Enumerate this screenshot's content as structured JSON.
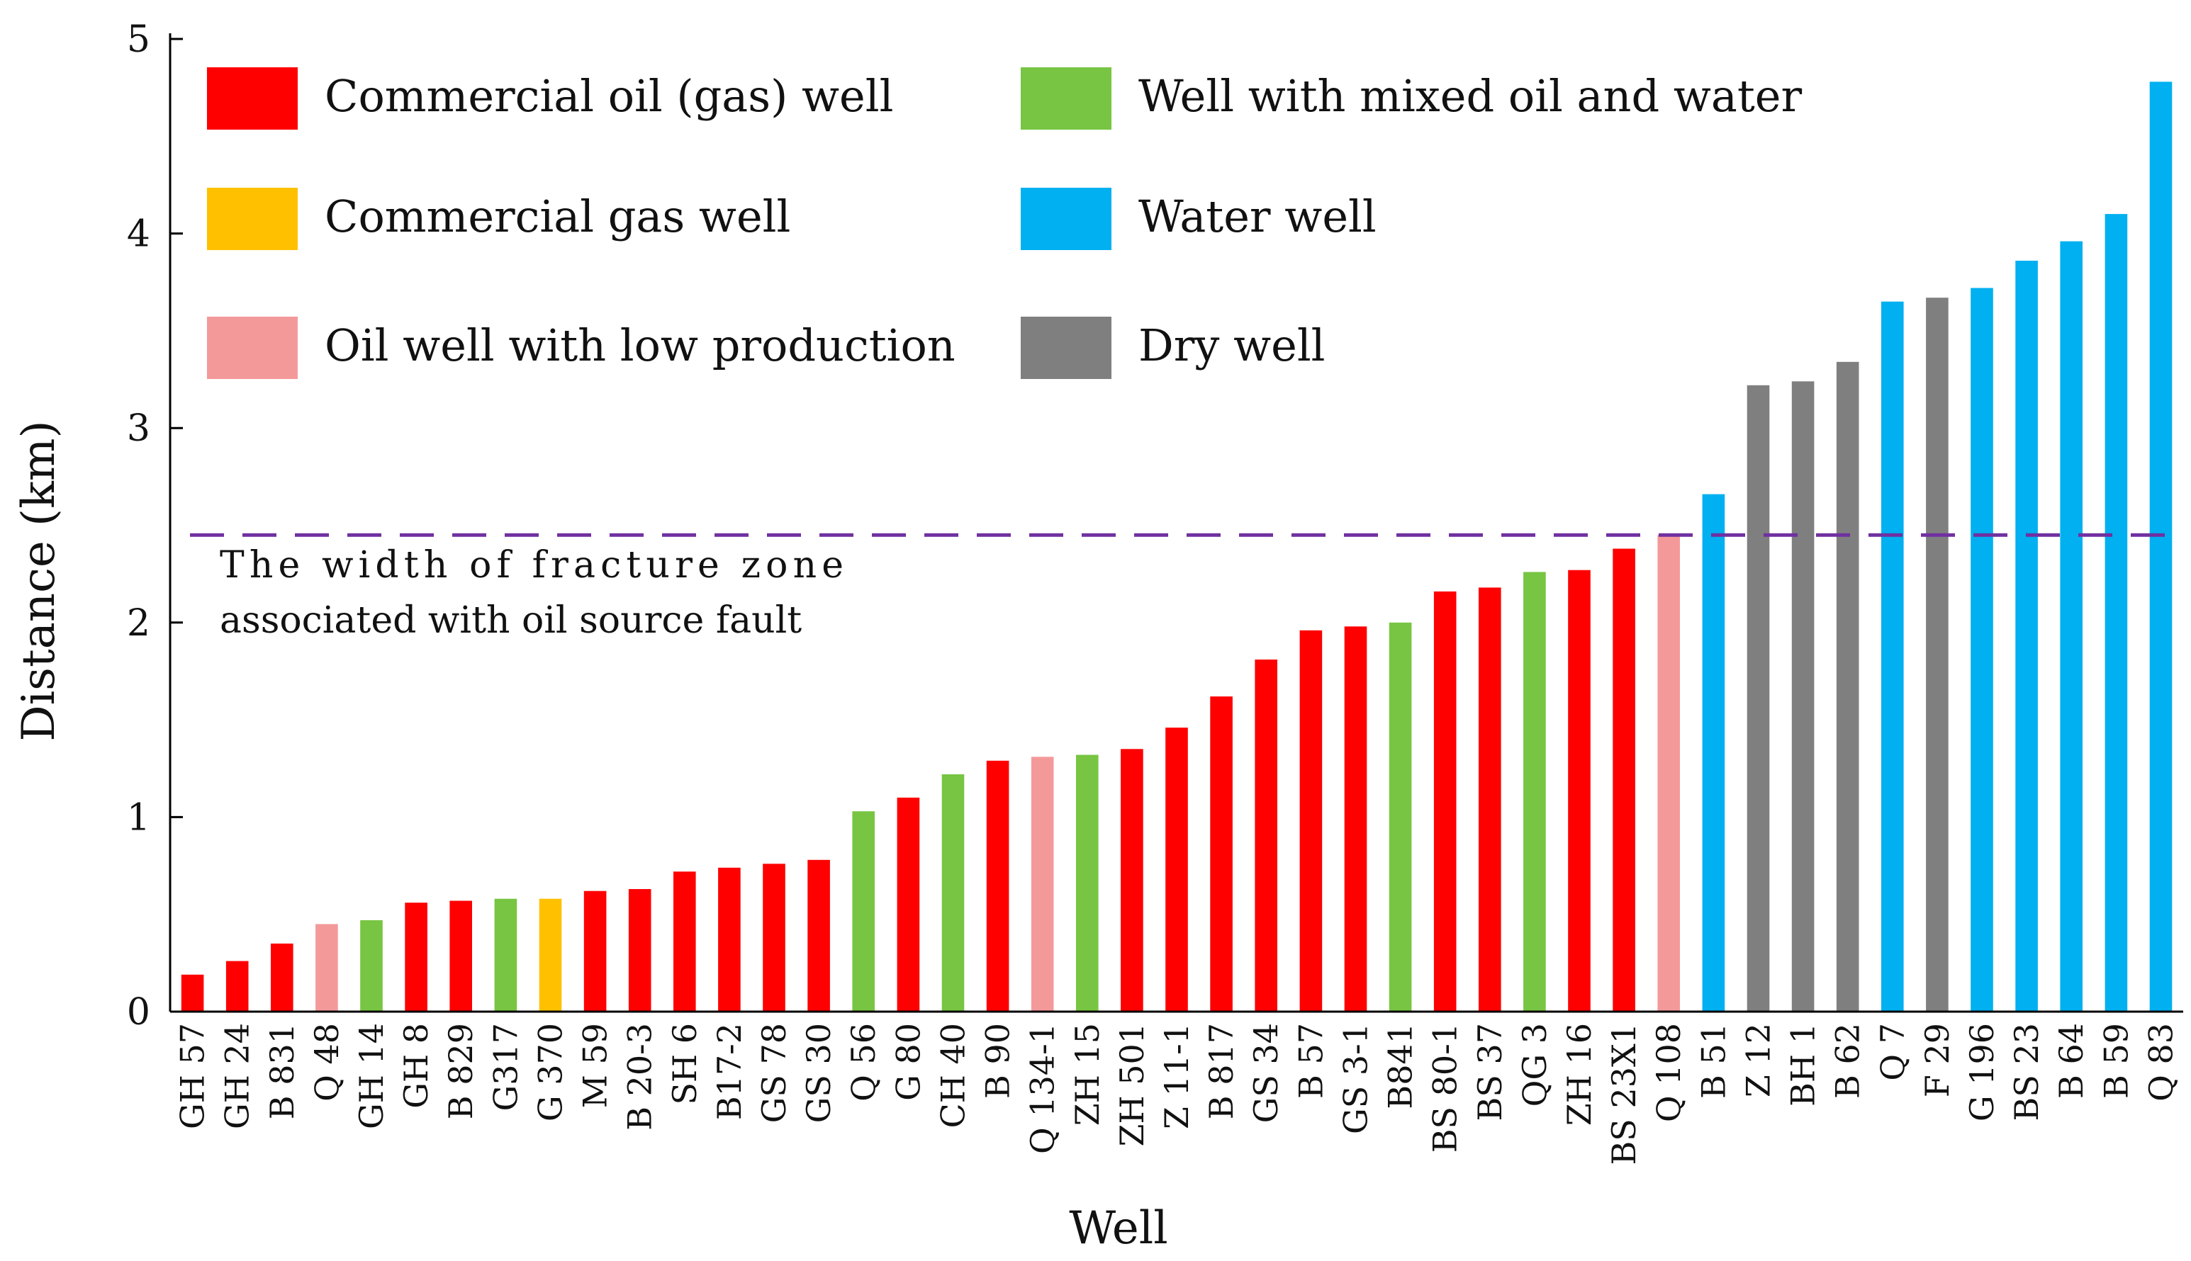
{
  "chart_data": {
    "type": "bar",
    "xlabel": "Well",
    "ylabel": "Distance (km)",
    "ylim": [
      0,
      5
    ],
    "yticks": [
      "0",
      "1",
      "2",
      "3",
      "4",
      "5"
    ],
    "threshold": {
      "value": 2.45,
      "color": "#7030a0",
      "label_line1": "The width of fracture zone",
      "label_line2": "associated with oil source fault"
    },
    "legend": [
      {
        "key": "commercial_oil",
        "label": "Commercial oil (gas) well",
        "color": "#ff0000"
      },
      {
        "key": "commercial_gas",
        "label": "Commercial gas well",
        "color": "#ffc000"
      },
      {
        "key": "low_production",
        "label": "Oil well with low production",
        "color": "#f4999a"
      },
      {
        "key": "mixed",
        "label": "Well with mixed oil and water",
        "color": "#77c542"
      },
      {
        "key": "water",
        "label": "Water well",
        "color": "#00b0f0"
      },
      {
        "key": "dry",
        "label": "Dry well",
        "color": "#7f7f7f"
      }
    ],
    "categories": [
      "GH 57",
      "GH 24",
      "B 831",
      "Q 48",
      "GH 14",
      "GH 8",
      "B 829",
      "G317",
      "G 370",
      "M 59",
      "B 20-3",
      "SH 6",
      "B17-2",
      "GS 78",
      "GS 30",
      "Q 56",
      "G 80",
      "CH 40",
      "B 90",
      "Q 134-1",
      "ZH 15",
      "ZH 501",
      "Z 11-1",
      "B 817",
      "GS 34",
      "B 57",
      "GS 3-1",
      "B841",
      "BS 80-1",
      "BS 37",
      "QG 3",
      "ZH 16",
      "BS 23X1",
      "Q 108",
      "B 51",
      "Z 12",
      "BH 1",
      "B 62",
      "Q 7",
      "F 29",
      "G 196",
      "BS 23",
      "B 64",
      "B 59",
      "Q 83"
    ],
    "values": [
      0.19,
      0.26,
      0.35,
      0.45,
      0.47,
      0.56,
      0.57,
      0.58,
      0.58,
      0.62,
      0.63,
      0.72,
      0.74,
      0.76,
      0.78,
      1.03,
      1.1,
      1.22,
      1.29,
      1.31,
      1.32,
      1.35,
      1.46,
      1.62,
      1.81,
      1.96,
      1.98,
      2.0,
      2.16,
      2.18,
      2.26,
      2.27,
      2.38,
      2.45,
      2.66,
      3.22,
      3.24,
      3.34,
      3.65,
      3.67,
      3.72,
      3.86,
      3.96,
      4.1,
      4.78
    ],
    "types": [
      "commercial_oil",
      "commercial_oil",
      "commercial_oil",
      "low_production",
      "mixed",
      "commercial_oil",
      "commercial_oil",
      "mixed",
      "commercial_gas",
      "commercial_oil",
      "commercial_oil",
      "commercial_oil",
      "commercial_oil",
      "commercial_oil",
      "commercial_oil",
      "mixed",
      "commercial_oil",
      "mixed",
      "commercial_oil",
      "low_production",
      "mixed",
      "commercial_oil",
      "commercial_oil",
      "commercial_oil",
      "commercial_oil",
      "commercial_oil",
      "commercial_oil",
      "mixed",
      "commercial_oil",
      "commercial_oil",
      "mixed",
      "commercial_oil",
      "commercial_oil",
      "low_production",
      "water",
      "dry",
      "dry",
      "dry",
      "water",
      "dry",
      "water",
      "water",
      "water",
      "water",
      "water"
    ]
  }
}
